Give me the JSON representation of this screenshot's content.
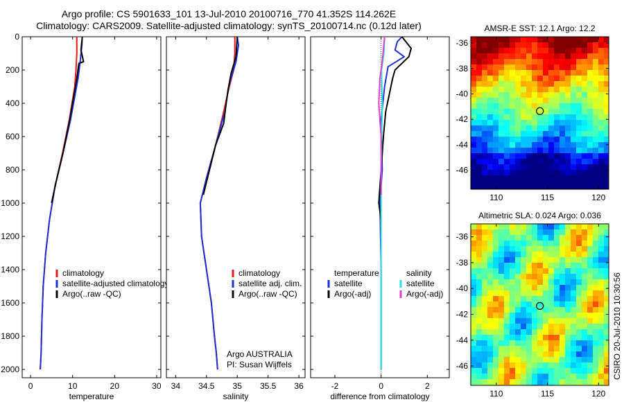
{
  "title": {
    "line1": "Argo profile: CS 5901633_101 13-Jul-2010 20100716_770 41.352S 114.262E",
    "line2": "Climatology: CARS2009. Satellite-adjusted climatology: synTS_20100714.nc (0.12d later)"
  },
  "credit": "CSIRO 20-Jul-2010 10:30:56",
  "colors": {
    "climatology": "#e41a1c",
    "satellite": "#1f2fd6",
    "argo": "#000000",
    "satellite_salinity": "#2fe0e0",
    "argo_salinity": "#e040d0"
  },
  "chart_data": [
    {
      "type": "line",
      "panel": "temperature",
      "xlabel": "temperature",
      "ylabel": "",
      "xlim": [
        -2,
        31
      ],
      "ylim": [
        2050,
        0
      ],
      "xticks": [
        0,
        10,
        20,
        30
      ],
      "yticks": [
        0,
        200,
        400,
        600,
        800,
        1000,
        1200,
        1400,
        1600,
        1800,
        2000
      ],
      "legend": "bottom-right",
      "series": [
        {
          "name": "climatology",
          "color": "#e41a1c",
          "x": [
            11.0,
            11.0,
            10.8,
            10.5,
            9.2,
            7.6,
            5.8,
            4.5,
            3.6,
            3.0,
            2.7,
            2.5,
            2.3
          ],
          "y": [
            0,
            100,
            200,
            300,
            500,
            700,
            900,
            1100,
            1300,
            1500,
            1700,
            1900,
            2000
          ]
        },
        {
          "name": "satellite-adjusted climatology",
          "color": "#1f2fd6",
          "x": [
            12.3,
            12.2,
            11.8,
            11.3,
            9.5,
            7.7,
            5.8,
            4.5,
            3.6,
            3.0,
            2.7,
            2.5,
            2.3
          ],
          "y": [
            0,
            50,
            150,
            250,
            500,
            700,
            900,
            1100,
            1300,
            1500,
            1700,
            1900,
            2000
          ]
        },
        {
          "name": "Argo(..raw -QC)",
          "color": "#000000",
          "x": [
            12.3,
            12.0,
            12.6,
            11.5,
            11.0,
            9.3,
            7.7,
            6.0,
            5.0
          ],
          "y": [
            0,
            80,
            150,
            160,
            250,
            500,
            700,
            880,
            1000
          ]
        }
      ]
    },
    {
      "type": "line",
      "panel": "salinity",
      "xlabel": "salinity",
      "ylabel": "",
      "xlim": [
        33.85,
        36.1
      ],
      "ylim": [
        2050,
        0
      ],
      "xticks": [
        34,
        34.5,
        35,
        35.5,
        36
      ],
      "yticks": [
        0,
        200,
        400,
        600,
        800,
        1000,
        1200,
        1400,
        1600,
        1800,
        2000
      ],
      "legend": "bottom-right",
      "annotations": [
        "Argo AUSTRALIA",
        "PI: Susan Wijffels"
      ],
      "series": [
        {
          "name": "climatology",
          "color": "#e41a1c",
          "x": [
            34.96,
            34.96,
            34.94,
            34.87,
            34.78,
            34.65,
            34.5,
            34.4,
            34.42,
            34.5,
            34.58,
            34.63,
            34.66,
            34.68
          ],
          "y": [
            0,
            100,
            200,
            300,
            450,
            650,
            850,
            1000,
            1200,
            1400,
            1600,
            1800,
            1900,
            2000
          ]
        },
        {
          "name": "satellite adj. clim.",
          "color": "#1f2fd6",
          "x": [
            35.0,
            35.02,
            34.98,
            34.86,
            34.8,
            34.65,
            34.5,
            34.4,
            34.42,
            34.5,
            34.58,
            34.63,
            34.66,
            34.68
          ],
          "y": [
            0,
            50,
            150,
            300,
            450,
            650,
            850,
            1000,
            1200,
            1400,
            1600,
            1800,
            1900,
            2000
          ]
        },
        {
          "name": "Argo(..raw -QC)",
          "color": "#000000",
          "x": [
            35.0,
            34.98,
            34.9,
            34.85,
            34.82,
            34.78,
            34.65,
            34.55,
            34.45
          ],
          "y": [
            0,
            120,
            220,
            320,
            400,
            520,
            650,
            800,
            950
          ]
        }
      ]
    },
    {
      "type": "line",
      "panel": "difference",
      "xlabel": "difference from climatology",
      "ylabel": "",
      "xlim": [
        -3.05,
        2.95
      ],
      "ylim": [
        2050,
        0
      ],
      "xticks": [
        -2,
        0,
        2
      ],
      "yticks": [
        0,
        200,
        400,
        600,
        800,
        1000,
        1200,
        1400,
        1600,
        1800,
        2000
      ],
      "legend": "bottom-right",
      "legend_headers": [
        "temperature",
        "salinity"
      ],
      "series": [
        {
          "name": "satellite",
          "group": "temperature",
          "color": "#1f2fd6",
          "x": [
            0.9,
            0.7,
            0.6,
            1.0,
            0.3,
            0.15,
            0.0,
            0.05,
            -0.05,
            0.0,
            0.0
          ],
          "y": [
            0,
            30,
            80,
            120,
            180,
            300,
            500,
            800,
            1000,
            1400,
            2000
          ]
        },
        {
          "name": "Argo(-adj)",
          "group": "temperature",
          "color": "#000000",
          "x": [
            0.9,
            1.3,
            1.2,
            0.6,
            0.5,
            0.2,
            0.1,
            0.0,
            -0.1,
            0.0
          ],
          "y": [
            0,
            70,
            120,
            200,
            250,
            450,
            600,
            800,
            1000,
            1100
          ]
        },
        {
          "name": "satellite",
          "group": "salinity",
          "color": "#2fe0e0",
          "x": [
            0.15,
            0.12,
            0.02,
            0.05,
            0.0,
            0.0,
            0.0
          ],
          "y": [
            0,
            100,
            200,
            400,
            800,
            1400,
            2000
          ]
        },
        {
          "name": "Argo(-adj)",
          "group": "salinity",
          "color": "#e040d0",
          "x": [
            0.15,
            0.05,
            -0.05,
            -0.1,
            0.0,
            0.0
          ],
          "y": [
            0,
            150,
            250,
            400,
            600,
            950
          ]
        }
      ]
    },
    {
      "type": "heatmap",
      "panel": "sst-map",
      "title": "AMSR-E SST: 12.1 Argo: 12.2",
      "xlim": [
        107.5,
        121
      ],
      "ylim": [
        -47.5,
        -35.5
      ],
      "xticks": [
        110,
        115,
        120
      ],
      "yticks": [
        -36,
        -38,
        -40,
        -42,
        -44,
        -46
      ],
      "marker": {
        "lon": 114.262,
        "lat": -41.352
      }
    },
    {
      "type": "heatmap",
      "panel": "sla-map",
      "title": "Altimetric SLA: 0.024 Argo: 0.036",
      "xlim": [
        107.5,
        121
      ],
      "ylim": [
        -47.5,
        -35
      ],
      "xticks": [
        110,
        115,
        120
      ],
      "yticks": [
        -36,
        -38,
        -40,
        -42,
        -44,
        -46
      ],
      "marker": {
        "lon": 114.262,
        "lat": -41.352
      }
    }
  ]
}
